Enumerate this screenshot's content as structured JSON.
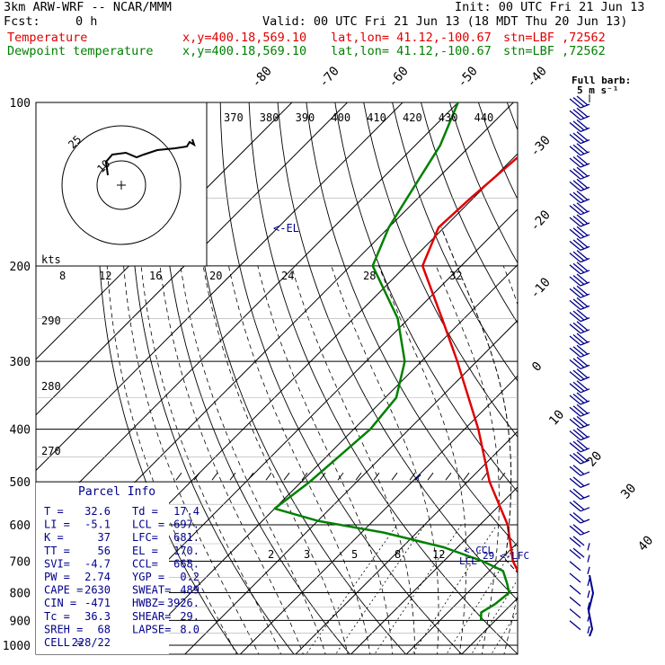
{
  "header": {
    "title_left": "3km ARW-WRF -- NCAR/MMM",
    "init": "Init: 00 UTC Fri 21 Jun 13",
    "fcst_label": "Fcst:",
    "fcst_value": "0 h",
    "valid": "Valid: 00 UTC Fri 21 Jun 13 (18 MDT Thu 20 Jun 13)",
    "temp_label": "Temperature",
    "dewp_label": "Dewpoint temperature",
    "xy": "x,y=400.18,569.10",
    "latlon": "lat,lon= 41.12,-100.67",
    "stn": "stn=LBF ,72562",
    "colors": {
      "temperature": "#e00000",
      "dewpoint": "#008000",
      "wind": "#00008b"
    }
  },
  "wind_legend": {
    "title": "Full barb:",
    "value": "5 m s⁻¹"
  },
  "hodograph": {
    "unit": "kts",
    "rings": [
      {
        "label": "25"
      },
      {
        "label": "10"
      }
    ]
  },
  "parcel": {
    "title": "Parcel Info",
    "rows": [
      [
        "T  =",
        "32.6",
        "Td =",
        "17.4"
      ],
      [
        "LI =",
        "-5.1",
        "LCL =",
        "697."
      ],
      [
        "K  =",
        "37",
        "LFC=",
        "681."
      ],
      [
        "TT =",
        "56",
        "EL =",
        "170."
      ],
      [
        "SVI=",
        "-4.7",
        "CCL=",
        "668."
      ],
      [
        "PW =",
        "2.74",
        "YGP =",
        "0.2"
      ],
      [
        "CAPE =",
        "2630",
        "SWEAT=",
        "489"
      ],
      [
        "CIN =",
        "-471",
        "HWBZ=",
        "3926."
      ],
      [
        "Tc =",
        "36.3",
        "SHEAR=",
        "29."
      ],
      [
        "SREH =",
        "68",
        "LAPSE=",
        "8.0"
      ],
      [
        "CELL =",
        "228/22",
        "",
        ""
      ]
    ]
  },
  "levels_text": {
    "el": "<-EL",
    "ccl": "<-CCL",
    "lcl": "LCL",
    "lfc": "<-LFC",
    "lfc_num": "29"
  },
  "chart_data": {
    "type": "line",
    "xlabel": "",
    "ylabel": "",
    "pressure_ticks": [
      100,
      200,
      300,
      400,
      500,
      600,
      700,
      800,
      900,
      1000
    ],
    "pressure_range": [
      1000,
      100
    ],
    "isotherm_labels": [
      -80,
      -70,
      -60,
      -50,
      -40,
      -30,
      -20,
      -10,
      0,
      10,
      20,
      30,
      40
    ],
    "theta_e_labels": [
      370,
      380,
      390,
      400,
      410,
      420,
      430,
      440
    ],
    "mixing_ratio_top_labels": [
      8,
      12,
      16,
      20,
      24,
      28,
      32
    ],
    "mixing_ratio_low_labels": [
      2,
      3,
      5,
      8,
      12
    ],
    "dry_adiabat_labels": [
      290,
      280,
      270
    ],
    "series": [
      {
        "name": "Temperature",
        "points": [
          [
            900,
            32.6
          ],
          [
            850,
            25.5
          ],
          [
            800,
            21.0
          ],
          [
            700,
            12.5
          ],
          [
            600,
            5.0
          ],
          [
            500,
            -6.0
          ],
          [
            400,
            -17.5
          ],
          [
            300,
            -33.5
          ],
          [
            250,
            -44.0
          ],
          [
            200,
            -57.0
          ],
          [
            170,
            -61.0
          ],
          [
            150,
            -60.5
          ],
          [
            120,
            -59.0
          ],
          [
            100,
            -58.5
          ]
        ]
      },
      {
        "name": "Dewpoint temperature",
        "points": [
          [
            900,
            17.4
          ],
          [
            870,
            16.0
          ],
          [
            840,
            17.0
          ],
          [
            800,
            17.5
          ],
          [
            770,
            15.5
          ],
          [
            730,
            12.5
          ],
          [
            700,
            7.0
          ],
          [
            660,
            -2.5
          ],
          [
            620,
            -16.0
          ],
          [
            590,
            -30.0
          ],
          [
            560,
            -40.0
          ],
          [
            520,
            -39.0
          ],
          [
            500,
            -38.5
          ],
          [
            400,
            -37.0
          ],
          [
            350,
            -38.0
          ],
          [
            300,
            -43.0
          ],
          [
            250,
            -52.0
          ],
          [
            200,
            -66.0
          ],
          [
            170,
            -70.0
          ],
          [
            150,
            -72.0
          ],
          [
            120,
            -75.5
          ],
          [
            100,
            -80.0
          ]
        ]
      }
    ],
    "hodograph_ranges": [
      25,
      10
    ]
  }
}
